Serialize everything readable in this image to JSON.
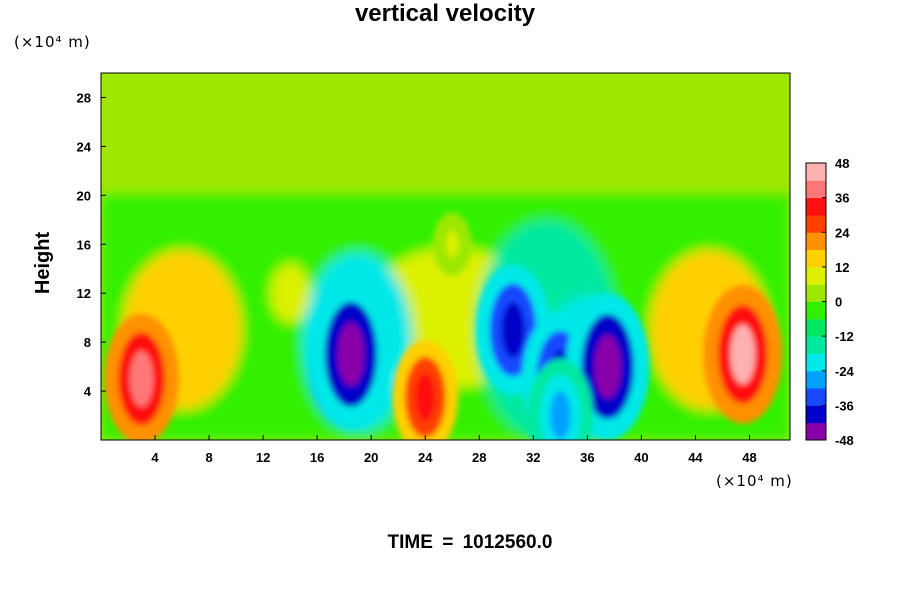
{
  "chart_data": {
    "type": "heatmap",
    "title": "vertical velocity",
    "ylabel": "Height",
    "x_unit": "(×10⁴ m)",
    "y_unit": "(×10⁴ m)",
    "xlim": [
      0,
      51
    ],
    "ylim": [
      0,
      30
    ],
    "x_ticks": [
      4,
      8,
      12,
      16,
      20,
      24,
      28,
      32,
      36,
      40,
      44,
      48
    ],
    "y_ticks": [
      4,
      8,
      12,
      16,
      20,
      24,
      28
    ],
    "colorbar": {
      "min": -48,
      "max": 48,
      "ticks": [
        48,
        36,
        24,
        12,
        0,
        -12,
        -24,
        -36,
        -48
      ],
      "colors": [
        "#8a00a8",
        "#0000c8",
        "#1848ff",
        "#00a0ff",
        "#00e8e8",
        "#00e8a0",
        "#00e860",
        "#30f000",
        "#9ee800",
        "#dcf000",
        "#ffd000",
        "#ff9000",
        "#ff4000",
        "#ff1010",
        "#ff7878",
        "#ffb0b0"
      ]
    },
    "features": [
      {
        "x": 3,
        "y": 5,
        "value": 38
      },
      {
        "x": 18.5,
        "y": 7,
        "value": -46
      },
      {
        "x": 24,
        "y": 3.5,
        "value": 30
      },
      {
        "x": 30.5,
        "y": 9,
        "value": -38
      },
      {
        "x": 34,
        "y": 5,
        "value": -40
      },
      {
        "x": 37.5,
        "y": 6,
        "value": -46
      },
      {
        "x": 47.5,
        "y": 7,
        "value": 42
      },
      {
        "x": 34,
        "y": 2,
        "value": -30
      },
      {
        "x": 26,
        "y": 16,
        "value": 6
      }
    ]
  },
  "footer": {
    "time_label": "TIME",
    "time_equals": "=",
    "time_value": "1012560.0"
  }
}
